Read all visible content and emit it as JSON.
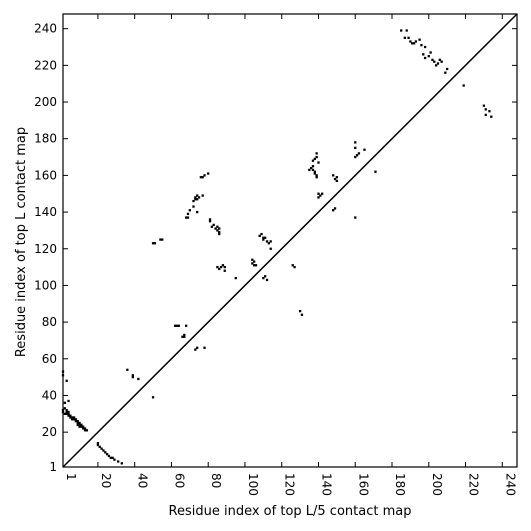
{
  "chart_data": {
    "type": "scatter",
    "xlabel": "Residue index of top L/5 contact map",
    "ylabel": "Residue index of top L contact map",
    "xlim": [
      1,
      248
    ],
    "ylim": [
      1,
      248
    ],
    "xticks": [
      1,
      20,
      40,
      60,
      80,
      100,
      120,
      140,
      160,
      180,
      200,
      220,
      240
    ],
    "yticks": [
      1,
      20,
      40,
      60,
      80,
      100,
      120,
      140,
      160,
      180,
      200,
      220,
      240
    ],
    "diagonal": true,
    "grid": false,
    "marker_color": "#000000",
    "lower_triangle_points": [
      [
        1,
        31
      ],
      [
        1,
        32
      ],
      [
        2,
        30
      ],
      [
        2,
        33
      ],
      [
        3,
        30
      ],
      [
        3,
        31
      ],
      [
        3,
        32
      ],
      [
        4,
        29
      ],
      [
        4,
        30
      ],
      [
        4,
        31
      ],
      [
        5,
        28
      ],
      [
        5,
        29
      ],
      [
        6,
        27
      ],
      [
        6,
        28
      ],
      [
        7,
        27
      ],
      [
        7,
        28
      ],
      [
        8,
        26
      ],
      [
        8,
        27
      ],
      [
        9,
        24
      ],
      [
        9,
        25
      ],
      [
        9,
        26
      ],
      [
        10,
        23
      ],
      [
        10,
        24
      ],
      [
        10,
        25
      ],
      [
        11,
        23
      ],
      [
        11,
        24
      ],
      [
        12,
        22
      ],
      [
        12,
        23
      ],
      [
        13,
        21
      ],
      [
        13,
        22
      ],
      [
        14,
        21
      ],
      [
        2,
        36
      ],
      [
        4,
        37
      ],
      [
        1,
        53
      ],
      [
        1,
        51
      ],
      [
        3,
        48
      ],
      [
        20,
        14
      ],
      [
        20,
        13
      ],
      [
        21,
        12
      ],
      [
        22,
        11
      ],
      [
        23,
        10
      ],
      [
        24,
        9
      ],
      [
        25,
        8
      ],
      [
        26,
        7
      ],
      [
        27,
        6
      ],
      [
        28,
        6
      ],
      [
        29,
        5
      ],
      [
        31,
        4
      ],
      [
        33,
        3
      ],
      [
        36,
        54
      ],
      [
        39,
        51
      ],
      [
        39,
        50
      ],
      [
        42,
        49
      ],
      [
        50,
        39
      ],
      [
        50,
        123
      ],
      [
        51,
        123
      ],
      [
        54,
        125
      ],
      [
        55,
        125
      ],
      [
        62,
        78
      ],
      [
        63,
        78
      ],
      [
        64,
        78
      ],
      [
        68,
        78
      ],
      [
        66,
        72
      ],
      [
        67,
        72
      ],
      [
        67,
        73
      ],
      [
        68,
        137
      ],
      [
        69,
        137
      ],
      [
        69,
        139
      ],
      [
        70,
        141
      ],
      [
        72,
        143
      ],
      [
        72,
        146
      ],
      [
        73,
        147
      ],
      [
        74,
        147
      ],
      [
        73,
        148
      ],
      [
        74,
        149
      ],
      [
        74,
        140
      ],
      [
        75,
        148
      ],
      [
        76,
        159
      ],
      [
        77,
        159
      ],
      [
        78,
        160
      ],
      [
        77,
        149
      ],
      [
        80,
        161
      ],
      [
        78,
        66
      ],
      [
        73,
        65
      ],
      [
        74,
        66
      ],
      [
        81,
        136
      ],
      [
        81,
        135
      ],
      [
        82,
        132
      ],
      [
        83,
        133
      ],
      [
        84,
        131
      ],
      [
        85,
        130
      ],
      [
        86,
        131
      ],
      [
        86,
        129
      ],
      [
        86,
        128
      ],
      [
        85,
        132
      ],
      [
        85,
        110
      ],
      [
        86,
        109
      ],
      [
        87,
        110
      ],
      [
        88,
        111
      ],
      [
        89,
        110
      ],
      [
        89,
        108
      ],
      [
        104,
        112
      ],
      [
        105,
        113
      ],
      [
        104,
        114
      ],
      [
        105,
        111
      ],
      [
        106,
        111
      ],
      [
        108,
        127
      ],
      [
        109,
        128
      ],
      [
        110,
        126
      ],
      [
        110,
        125
      ],
      [
        111,
        126
      ],
      [
        112,
        124
      ],
      [
        113,
        123
      ],
      [
        114,
        124
      ],
      [
        114,
        120
      ],
      [
        110,
        104
      ],
      [
        111,
        105
      ],
      [
        112,
        103
      ],
      [
        95,
        104
      ],
      [
        126,
        111
      ],
      [
        127,
        110
      ],
      [
        130,
        86
      ],
      [
        131,
        84
      ],
      [
        135,
        163
      ],
      [
        136,
        164
      ],
      [
        137,
        163
      ],
      [
        137,
        165
      ],
      [
        138,
        162
      ],
      [
        138,
        161
      ],
      [
        139,
        160
      ],
      [
        139,
        159
      ],
      [
        137,
        168
      ],
      [
        138,
        169
      ],
      [
        139,
        170
      ],
      [
        139,
        172
      ],
      [
        140,
        167
      ],
      [
        140,
        150
      ],
      [
        141,
        149
      ],
      [
        142,
        150
      ],
      [
        140,
        148
      ],
      [
        148,
        160
      ],
      [
        149,
        158
      ],
      [
        150,
        159
      ],
      [
        150,
        157
      ],
      [
        148,
        141
      ],
      [
        149,
        142
      ],
      [
        160,
        170
      ],
      [
        160,
        175
      ],
      [
        160,
        178
      ],
      [
        161,
        171
      ],
      [
        162,
        172
      ],
      [
        165,
        174
      ],
      [
        160,
        137
      ],
      [
        171,
        162
      ],
      [
        185,
        239
      ],
      [
        188,
        239
      ],
      [
        187,
        235
      ],
      [
        189,
        235
      ],
      [
        190,
        233
      ],
      [
        191,
        232
      ],
      [
        192,
        232
      ],
      [
        193,
        233
      ],
      [
        195,
        234
      ],
      [
        196,
        231
      ],
      [
        198,
        230
      ],
      [
        197,
        226
      ],
      [
        198,
        224
      ],
      [
        200,
        225
      ],
      [
        201,
        227
      ],
      [
        202,
        223
      ],
      [
        203,
        222
      ],
      [
        204,
        220
      ],
      [
        205,
        221
      ],
      [
        206,
        223
      ],
      [
        207,
        222
      ],
      [
        209,
        216
      ],
      [
        210,
        218
      ],
      [
        219,
        209
      ],
      [
        230,
        198
      ],
      [
        231,
        196
      ],
      [
        231,
        193
      ],
      [
        233,
        195
      ],
      [
        234,
        192
      ]
    ]
  }
}
